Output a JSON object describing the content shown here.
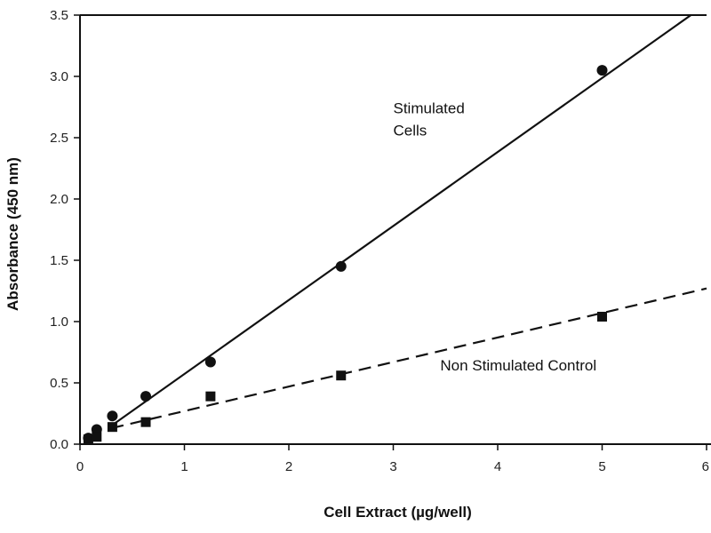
{
  "chart_data": {
    "type": "scatter",
    "title": "",
    "xlabel": "Cell Extract (µg/well)",
    "ylabel": "Absorbance (450 nm)",
    "xlim": [
      0,
      6
    ],
    "ylim": [
      0,
      3.5
    ],
    "xticks": [
      "0",
      "1",
      "2",
      "3",
      "4",
      "5",
      "6"
    ],
    "yticks": [
      "0.0",
      "0.5",
      "1.0",
      "1.5",
      "2.0",
      "2.5",
      "3.0",
      "3.5"
    ],
    "grid": false,
    "series": [
      {
        "name": "Stimulated Cells",
        "marker": "circle",
        "line_style": "solid",
        "x": [
          0.08,
          0.16,
          0.31,
          0.63,
          1.25,
          2.5,
          5.0
        ],
        "y": [
          0.05,
          0.12,
          0.23,
          0.39,
          0.67,
          1.45,
          3.05
        ],
        "fit": {
          "x0": 0.3,
          "y0": 0.15,
          "x1": 5.85,
          "y1": 3.5
        }
      },
      {
        "name": "Non Stimulated Control",
        "marker": "square",
        "line_style": "dashed",
        "x": [
          0.08,
          0.16,
          0.31,
          0.63,
          1.25,
          2.5,
          5.0
        ],
        "y": [
          0.04,
          0.06,
          0.14,
          0.18,
          0.39,
          0.56,
          1.04
        ],
        "fit": {
          "x0": 0.3,
          "y0": 0.13,
          "x1": 6.0,
          "y1": 1.27
        }
      }
    ],
    "annotations": [
      {
        "lines": [
          "Stimulated",
          "Cells"
        ],
        "x": 3.0,
        "y": 2.7
      },
      {
        "lines": [
          "Non Stimulated Control"
        ],
        "x": 3.45,
        "y": 0.6
      }
    ]
  }
}
